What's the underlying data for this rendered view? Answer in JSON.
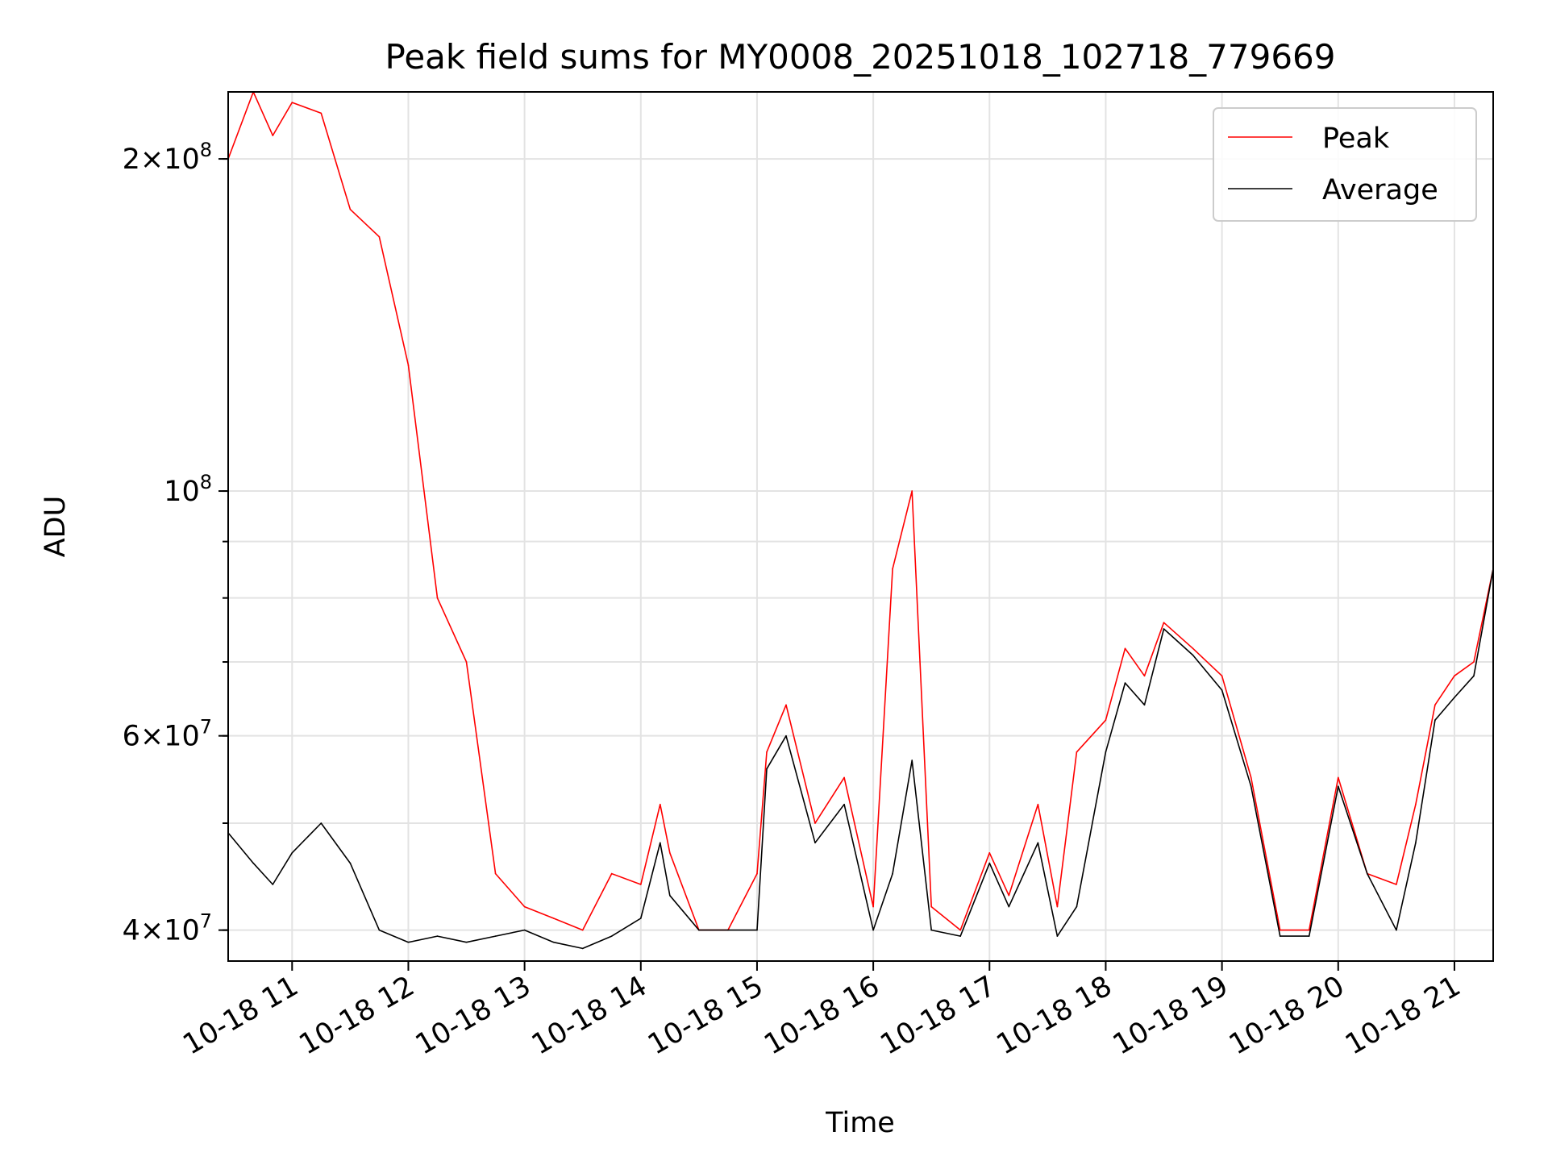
{
  "chart_data": {
    "type": "line",
    "title": "Peak field sums for MY0008_20251018_102718_779669",
    "xlabel": "Time",
    "ylabel": "ADU",
    "y_scale": "log",
    "ylim": [
      37500000,
      230000000
    ],
    "xlim": [
      "2025-10-18 10:27",
      "2025-10-18 21:20"
    ],
    "x_ticks": [
      "10-18 11",
      "10-18 12",
      "10-18 13",
      "10-18 14",
      "10-18 15",
      "10-18 16",
      "10-18 17",
      "10-18 18",
      "10-18 19",
      "10-18 20",
      "10-18 21"
    ],
    "y_tick_labels": [
      {
        "value": 40000000,
        "mantissa": "4",
        "exponent": "7"
      },
      {
        "value": 60000000,
        "mantissa": "6",
        "exponent": "7"
      },
      {
        "value": 100000000,
        "mantissa": "",
        "exponent": "8"
      },
      {
        "value": 200000000,
        "mantissa": "2",
        "exponent": "8"
      }
    ],
    "grid": true,
    "legend_position": "top-right",
    "colors": {
      "peak": "#ff0000",
      "average": "#000000"
    },
    "x": [
      "2025-10-18 10:27",
      "2025-10-18 10:40",
      "2025-10-18 10:50",
      "2025-10-18 11:00",
      "2025-10-18 11:15",
      "2025-10-18 11:30",
      "2025-10-18 11:45",
      "2025-10-18 12:00",
      "2025-10-18 12:15",
      "2025-10-18 12:30",
      "2025-10-18 12:45",
      "2025-10-18 13:00",
      "2025-10-18 13:15",
      "2025-10-18 13:30",
      "2025-10-18 13:45",
      "2025-10-18 14:00",
      "2025-10-18 14:10",
      "2025-10-18 14:15",
      "2025-10-18 14:30",
      "2025-10-18 14:45",
      "2025-10-18 15:00",
      "2025-10-18 15:05",
      "2025-10-18 15:15",
      "2025-10-18 15:30",
      "2025-10-18 15:45",
      "2025-10-18 16:00",
      "2025-10-18 16:10",
      "2025-10-18 16:20",
      "2025-10-18 16:30",
      "2025-10-18 16:45",
      "2025-10-18 17:00",
      "2025-10-18 17:10",
      "2025-10-18 17:25",
      "2025-10-18 17:35",
      "2025-10-18 17:45",
      "2025-10-18 18:00",
      "2025-10-18 18:10",
      "2025-10-18 18:20",
      "2025-10-18 18:30",
      "2025-10-18 18:45",
      "2025-10-18 19:00",
      "2025-10-18 19:15",
      "2025-10-18 19:30",
      "2025-10-18 19:45",
      "2025-10-18 20:00",
      "2025-10-18 20:15",
      "2025-10-18 20:30",
      "2025-10-18 20:40",
      "2025-10-18 20:50",
      "2025-10-18 21:00",
      "2025-10-18 21:10",
      "2025-10-18 21:20"
    ],
    "series": [
      {
        "name": "Peak",
        "values": [
          200000000,
          230000000,
          210000000,
          225000000,
          220000000,
          180000000,
          170000000,
          130000000,
          80000000,
          70000000,
          45000000,
          42000000,
          41000000,
          40000000,
          45000000,
          44000000,
          52000000,
          47000000,
          40000000,
          40000000,
          45000000,
          58000000,
          64000000,
          50000000,
          55000000,
          42000000,
          85000000,
          100000000,
          42000000,
          40000000,
          47000000,
          43000000,
          52000000,
          42000000,
          58000000,
          62000000,
          72000000,
          68000000,
          76000000,
          72000000,
          68000000,
          55000000,
          40000000,
          40000000,
          55000000,
          45000000,
          44000000,
          52000000,
          64000000,
          68000000,
          70000000,
          85000000
        ]
      },
      {
        "name": "Average",
        "values": [
          49000000,
          46000000,
          44000000,
          47000000,
          50000000,
          46000000,
          40000000,
          39000000,
          39500000,
          39000000,
          39500000,
          40000000,
          39000000,
          38500000,
          39500000,
          41000000,
          48000000,
          43000000,
          40000000,
          40000000,
          40000000,
          56000000,
          60000000,
          48000000,
          52000000,
          40000000,
          45000000,
          57000000,
          40000000,
          39500000,
          46000000,
          42000000,
          48000000,
          39500000,
          42000000,
          58000000,
          67000000,
          64000000,
          75000000,
          71000000,
          66000000,
          54000000,
          39500000,
          39500000,
          54000000,
          45000000,
          40000000,
          48000000,
          62000000,
          65000000,
          68000000,
          85000000
        ]
      }
    ]
  }
}
